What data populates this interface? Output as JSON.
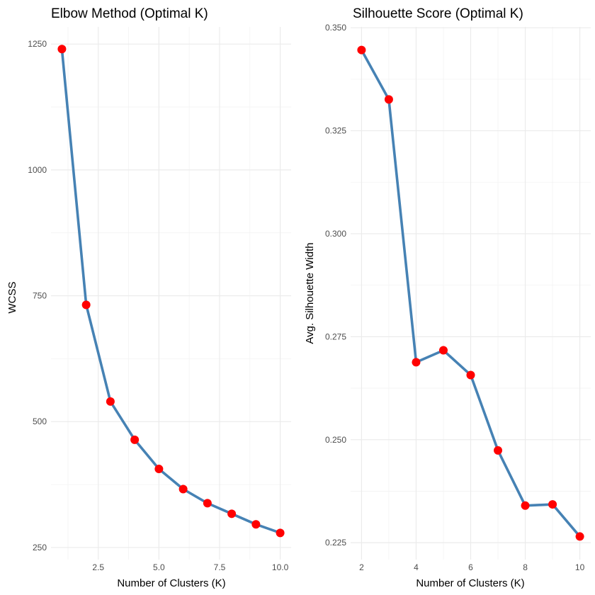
{
  "chart_data": [
    {
      "type": "line",
      "title": "Elbow Method (Optimal K)",
      "xlabel": "Number of Clusters (K)",
      "ylabel": "WCSS",
      "x": [
        1,
        2,
        3,
        4,
        5,
        6,
        7,
        8,
        9,
        10
      ],
      "series": [
        {
          "values": [
            1240,
            732,
            540,
            464,
            406,
            366,
            338,
            317,
            296,
            279
          ]
        }
      ],
      "xlim": [
        0.55,
        10.45
      ],
      "ylim": [
        226,
        1284
      ],
      "x_ticks": [
        2.5,
        5.0,
        7.5,
        10.0
      ],
      "x_tick_labels": [
        "2.5",
        "5.0",
        "7.5",
        "10.0"
      ],
      "y_ticks": [
        250,
        500,
        750,
        1000,
        1250
      ],
      "y_tick_labels": [
        "250",
        "500",
        "750",
        "1000",
        "1250"
      ],
      "grid": true,
      "line_color": "#4682b4",
      "point_color": "#ff0000"
    },
    {
      "type": "line",
      "title": "Silhouette Score (Optimal K)",
      "xlabel": "Number of Clusters (K)",
      "ylabel": "Avg. Silhouette Width",
      "x": [
        2,
        3,
        4,
        5,
        6,
        7,
        8,
        9,
        10
      ],
      "series": [
        {
          "values": [
            0.3446,
            0.3326,
            0.2688,
            0.2717,
            0.2657,
            0.2474,
            0.234,
            0.2343,
            0.2265
          ]
        }
      ],
      "xlim": [
        1.6,
        10.4
      ],
      "ylim": [
        0.2209,
        0.3502
      ],
      "x_ticks": [
        2,
        4,
        6,
        8,
        10
      ],
      "x_tick_labels": [
        "2",
        "4",
        "6",
        "8",
        "10"
      ],
      "y_ticks": [
        0.225,
        0.25,
        0.275,
        0.3,
        0.325,
        0.35
      ],
      "y_tick_labels": [
        "0.225",
        "0.250",
        "0.275",
        "0.300",
        "0.325",
        "0.350"
      ],
      "grid": true,
      "line_color": "#4682b4",
      "point_color": "#ff0000"
    }
  ]
}
